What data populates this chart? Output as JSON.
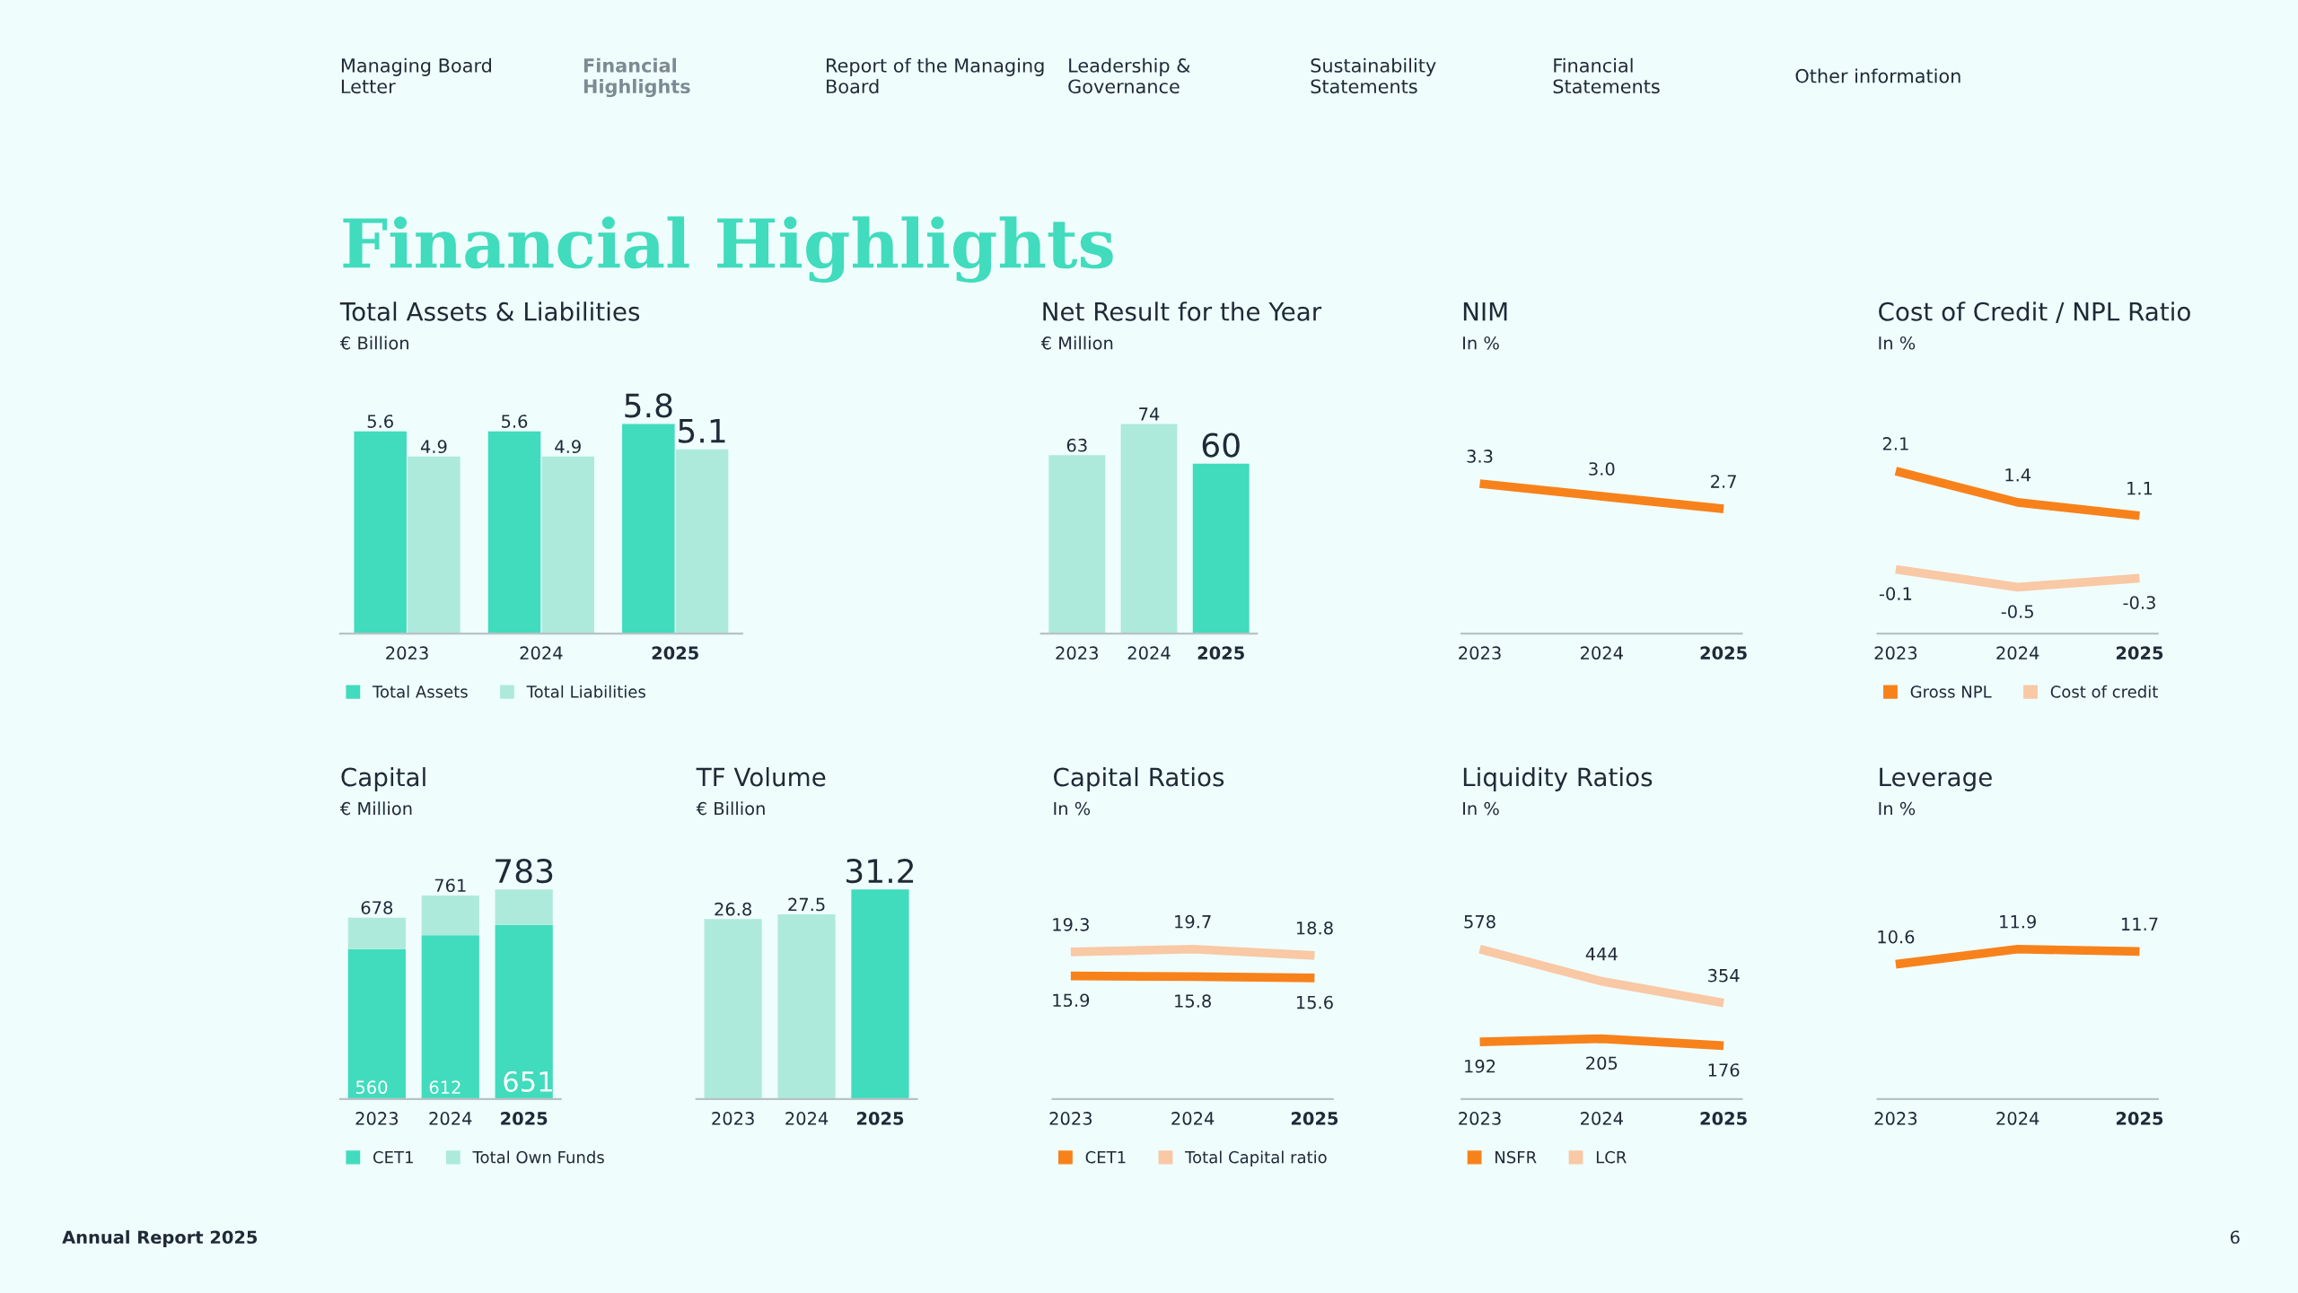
{
  "chart_data": [
    {
      "type": "other",
      "title": "Financial Highlights",
      "annotations": [
        "Managing Board Letter",
        "Financial Highlights",
        "Report of the Managing Board",
        "Leadership & Governance",
        "Sustainability Statements",
        "Financial Statements",
        "Other information",
        "Annual Report 2025",
        "6"
      ]
    },
    {
      "type": "bar",
      "title": "Total Assets & Liabilities",
      "subtitle": "€ Billion",
      "categories": [
        "2023",
        "2024",
        "2025"
      ],
      "series": [
        {
          "name": "Total Assets",
          "color": "#41dbbd",
          "values": [
            5.6,
            5.6,
            5.8
          ]
        },
        {
          "name": "Total Liabilities",
          "color": "#aeeadb",
          "values": [
            4.9,
            4.9,
            5.1
          ]
        }
      ],
      "data_labels": true,
      "legend": "bottom"
    },
    {
      "type": "bar",
      "title": "Net Result for the Year",
      "subtitle": "€ Million",
      "categories": [
        "2023",
        "2024",
        "2025"
      ],
      "values": [
        63,
        74,
        60
      ],
      "colors": [
        "#aeeadb",
        "#aeeadb",
        "#41dbbd"
      ],
      "data_labels": true
    },
    {
      "type": "line",
      "title": "NIM",
      "subtitle": "In %",
      "categories": [
        "2023",
        "2024",
        "2025"
      ],
      "series": [
        {
          "color": "#f7821b",
          "values": [
            3.3,
            3.0,
            2.7
          ],
          "value_labels": [
            "3.3",
            "3.0",
            "2.7"
          ]
        }
      ],
      "marker": "none",
      "line_style": "solid"
    },
    {
      "type": "line",
      "title": "Cost of Credit / NPL Ratio",
      "subtitle": "In %",
      "categories": [
        "2023",
        "2024",
        "2025"
      ],
      "series": [
        {
          "name": "Gross NPL",
          "color": "#f7821b",
          "values": [
            2.1,
            1.4,
            1.1
          ]
        },
        {
          "name": "Cost of credit",
          "color": "#f9c8a5",
          "values": [
            -0.1,
            -0.5,
            -0.3
          ]
        }
      ],
      "data_labels": true,
      "legend": "bottom",
      "marker": "none",
      "line_style": "solid"
    },
    {
      "type": "bar",
      "title": "Capital",
      "subtitle": "€ Million",
      "categories": [
        "2023",
        "2024",
        "2025"
      ],
      "stacked": true,
      "series": [
        {
          "name": "CET1",
          "color": "#41dbbd",
          "values": [
            560,
            612,
            651
          ],
          "value_labels": [
            "560",
            "612",
            "651"
          ]
        },
        {
          "name": "Total Own Funds",
          "color": "#aeeadb",
          "values": [
            118,
            149,
            132
          ]
        }
      ],
      "totals": [
        "678",
        "761",
        "783"
      ],
      "legend": "bottom"
    },
    {
      "type": "bar",
      "title": "TF Volume",
      "subtitle": "€ Billion",
      "categories": [
        "2023",
        "2024",
        "2025"
      ],
      "values": [
        26.8,
        27.5,
        31.2
      ],
      "colors": [
        "#aeeadb",
        "#aeeadb",
        "#41dbbd"
      ],
      "data_labels": true
    },
    {
      "type": "line",
      "title": "Capital Ratios",
      "subtitle": "In %",
      "categories": [
        "2023",
        "2024",
        "2025"
      ],
      "series": [
        {
          "name": "CET1",
          "color": "#f7821b",
          "values": [
            15.9,
            15.8,
            15.6
          ]
        },
        {
          "name": "Total Capital ratio",
          "color": "#f9c8a5",
          "values": [
            19.3,
            19.7,
            18.8
          ]
        }
      ],
      "data_labels": true,
      "legend": "bottom",
      "marker": "none",
      "line_style": "solid"
    },
    {
      "type": "line",
      "title": "Liquidity Ratios",
      "subtitle": "In %",
      "categories": [
        "2023",
        "2024",
        "2025"
      ],
      "series": [
        {
          "name": "NSFR",
          "color": "#f7821b",
          "values": [
            192,
            205,
            176
          ]
        },
        {
          "name": "LCR",
          "color": "#f9c8a5",
          "values": [
            578,
            444,
            354
          ]
        }
      ],
      "data_labels": true,
      "legend": "bottom",
      "marker": "none",
      "line_style": "solid"
    },
    {
      "type": "line",
      "title": "Leverage",
      "subtitle": "In %",
      "categories": [
        "2023",
        "2024",
        "2025"
      ],
      "series": [
        {
          "color": "#f7821b",
          "values": [
            10.6,
            11.9,
            11.7
          ]
        }
      ],
      "data_labels": true,
      "marker": "none",
      "line_style": "solid"
    }
  ]
}
